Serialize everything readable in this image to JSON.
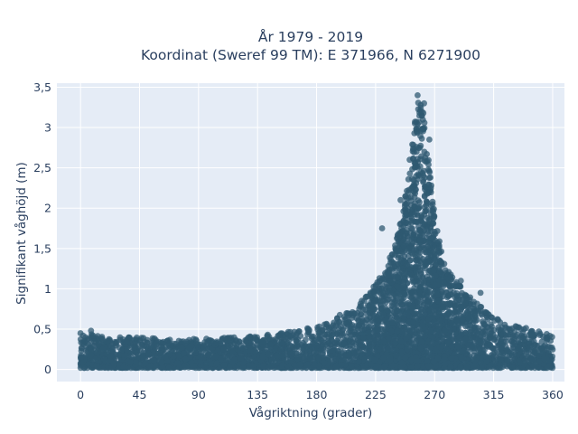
{
  "colors": {
    "plot_background": "#e5ecf6",
    "grid": "#ffffff",
    "marker": "#2f5a72",
    "text": "#2a3f5f"
  },
  "chart_data": {
    "type": "scatter",
    "title_line1": "År 1979 - 2019",
    "title_line2": "Koordinat (Sweref 99 TM): E 371966, N 6271900",
    "xlabel": "Vågriktning (grader)",
    "ylabel": "Signifikant våghöjd (m)",
    "xlim": [
      -18,
      369
    ],
    "ylim": [
      -0.15,
      3.55
    ],
    "x_ticks": [
      0,
      45,
      90,
      135,
      180,
      225,
      270,
      315,
      360
    ],
    "x_tick_labels": [
      "0",
      "45",
      "90",
      "135",
      "180",
      "225",
      "270",
      "315",
      "360"
    ],
    "y_ticks": [
      0,
      0.5,
      1,
      1.5,
      2,
      2.5,
      3,
      3.5
    ],
    "y_tick_labels": [
      "0",
      "0,5",
      "1",
      "1,5",
      "2",
      "2,5",
      "3",
      "3,5"
    ],
    "grid": true,
    "series": [
      {
        "marker_opacity": 0.75,
        "envelope_x": [
          0,
          10,
          20,
          30,
          45,
          60,
          90,
          120,
          135,
          150,
          165,
          180,
          195,
          210,
          220,
          230,
          240,
          245,
          250,
          255,
          258,
          261,
          264,
          267,
          270,
          275,
          280,
          290,
          300,
          315,
          330,
          345,
          360
        ],
        "envelope_ymax": [
          0.42,
          0.45,
          0.4,
          0.4,
          0.4,
          0.38,
          0.38,
          0.4,
          0.42,
          0.45,
          0.48,
          0.55,
          0.65,
          0.8,
          0.95,
          1.2,
          1.55,
          1.9,
          2.4,
          3.1,
          3.38,
          3.3,
          2.95,
          2.4,
          1.9,
          1.5,
          1.25,
          1.05,
          0.85,
          0.65,
          0.55,
          0.5,
          0.42
        ],
        "ymin": 0.02,
        "sample_points": [
          {
            "x": 257,
            "y": 3.4
          },
          {
            "x": 262,
            "y": 3.3
          },
          {
            "x": 255,
            "y": 3.05
          },
          {
            "x": 266,
            "y": 2.85
          },
          {
            "x": 251,
            "y": 2.6
          },
          {
            "x": 244,
            "y": 2.1
          },
          {
            "x": 230,
            "y": 1.75
          },
          {
            "x": 290,
            "y": 1.1
          },
          {
            "x": 305,
            "y": 0.95
          },
          {
            "x": 8,
            "y": 0.48
          },
          {
            "x": 0,
            "y": 0.45
          }
        ]
      }
    ]
  }
}
